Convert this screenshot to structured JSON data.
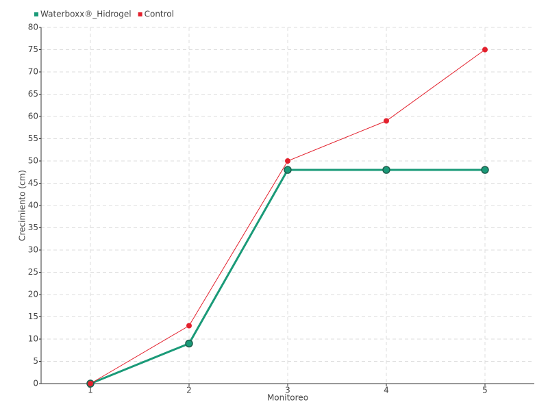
{
  "chart_data": {
    "type": "line",
    "x_label": "Monitoreo",
    "y_label": "Crecimiento (cm)",
    "categories": [
      "1",
      "2",
      "3",
      "4",
      "5"
    ],
    "series": [
      {
        "name": "Waterboxx®_Hidrogel",
        "color": "#1a9a78",
        "values": [
          0,
          9,
          48,
          48,
          48
        ]
      },
      {
        "name": "Control",
        "color": "#e3212d",
        "values": [
          0,
          13,
          50,
          59,
          75
        ]
      }
    ],
    "ylim": [
      0,
      80
    ],
    "yticks": [
      0,
      5,
      10,
      15,
      20,
      25,
      30,
      35,
      40,
      45,
      50,
      55,
      60,
      65,
      70,
      75,
      80
    ],
    "grid": true
  }
}
